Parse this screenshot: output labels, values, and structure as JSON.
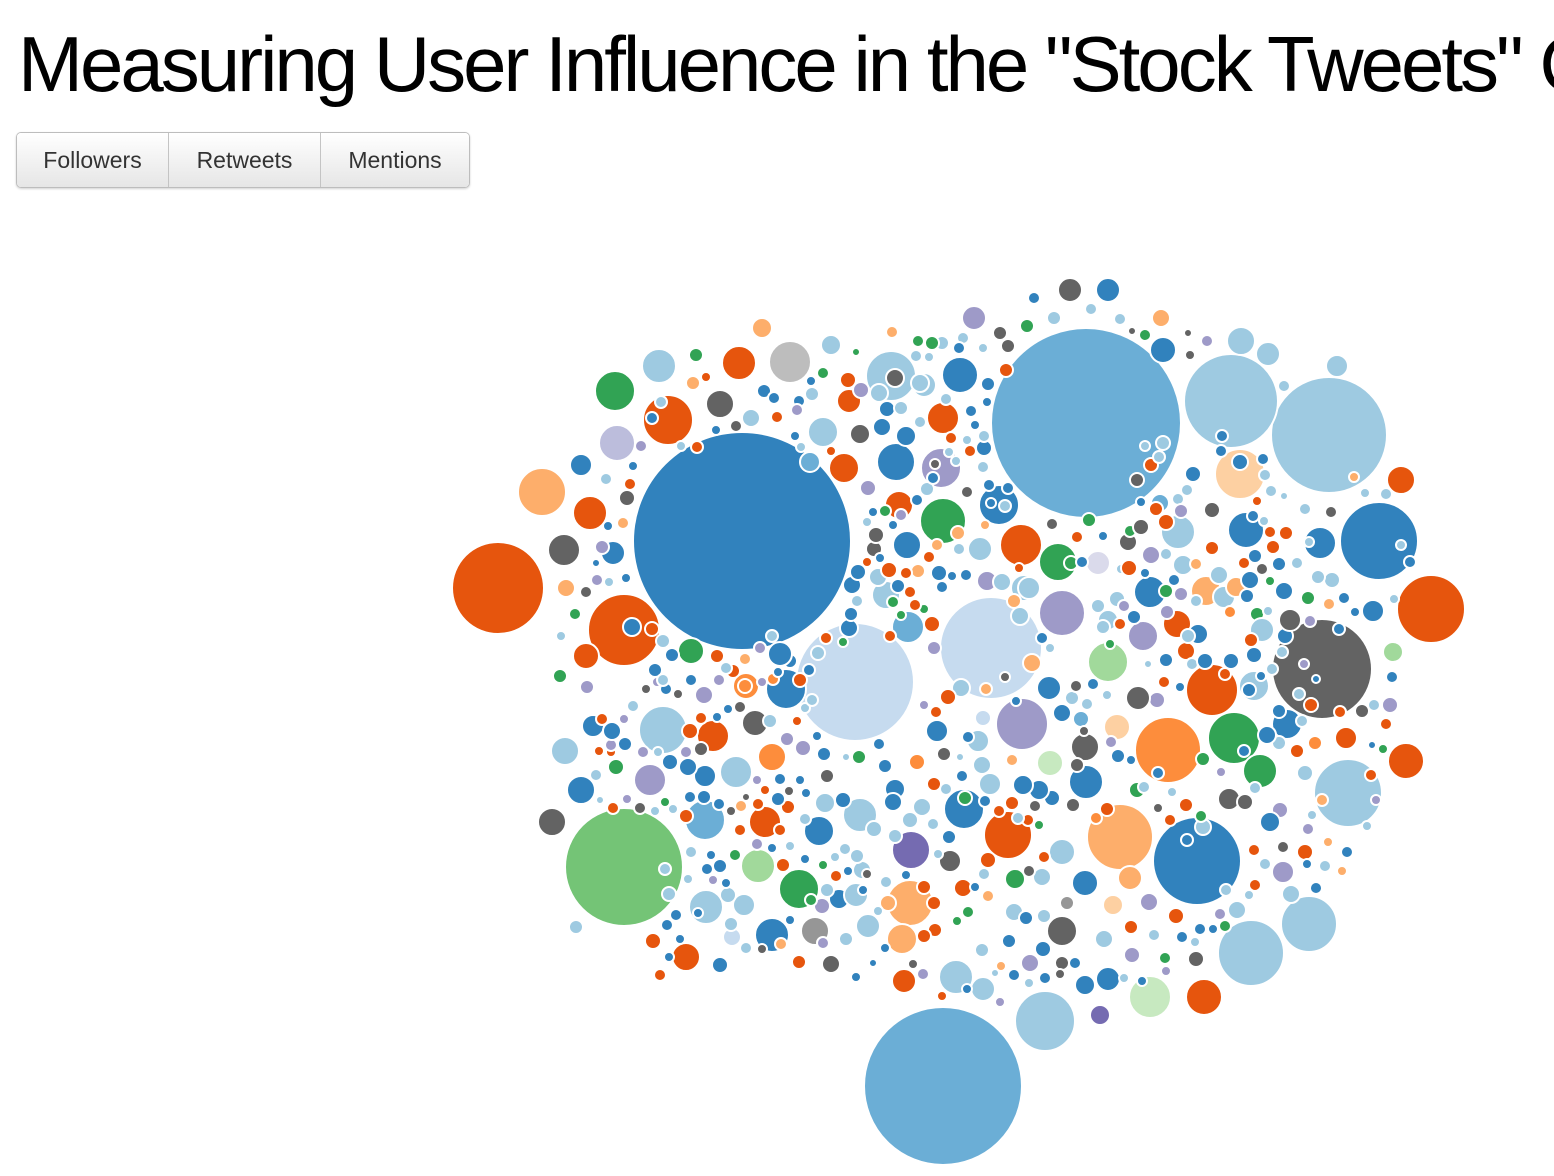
{
  "page": {
    "title": "Measuring User Influence in the \"Stock Tweets\" Co"
  },
  "controls": {
    "followers_label": "Followers",
    "retweets_label": "Retweets",
    "mentions_label": "Mentions"
  },
  "chart_data": {
    "type": "bubble",
    "title": "",
    "palette": {
      "b": "#3182bd",
      "c": "#6baed6",
      "d": "#9ecae1",
      "e": "#c6dbef",
      "f": "#e6550d",
      "g": "#fd8d3c",
      "h": "#fdae6b",
      "i": "#fdd0a2",
      "j": "#31a354",
      "k": "#74c476",
      "l": "#a1d99b",
      "m": "#c7e9c0",
      "n": "#756bb1",
      "o": "#9e9ac8",
      "p": "#bcbddc",
      "q": "#dadaeb",
      "r": "#636363",
      "s": "#969696",
      "t": "#bdbdbd"
    }
  }
}
